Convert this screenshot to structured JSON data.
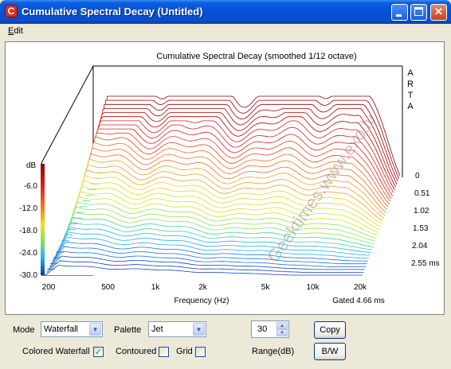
{
  "window": {
    "title": "Cumulative Spectral Decay  (Untitled)",
    "icon": "arta-app-icon",
    "icon_glyph": "C",
    "controls": {
      "minimize": "minimize-icon",
      "maximize": "maximize-icon",
      "close": "close-icon",
      "close_glyph": "✕"
    }
  },
  "menu": {
    "items": [
      {
        "label": "Edit",
        "accel": "E",
        "rest": "dit"
      }
    ]
  },
  "chart": {
    "title": "Cumulative Spectral Decay (smoothed 1/12 octave)",
    "brand": [
      "A",
      "R",
      "T",
      "A"
    ],
    "db_label": "dB",
    "db_ticks": [
      "-6.0",
      "-12.0",
      "-18.0",
      "-24.0",
      "-30.0"
    ],
    "freq_ticks": [
      "200",
      "500",
      "1k",
      "2k",
      "5k",
      "10k",
      "20k"
    ],
    "xlabel": "Frequency (Hz)",
    "time_ticks": [
      "0",
      "0.51",
      "1.02",
      "1.53",
      "2.04",
      "2.55 ms"
    ],
    "gated": "Gated 4.66 ms",
    "palette_colors": [
      "#8b0000",
      "#d42020",
      "#f07020",
      "#f0d020",
      "#b0e040",
      "#40d0c0",
      "#20a0f0",
      "#1040c0"
    ]
  },
  "chart_data": {
    "type": "waterfall",
    "title": "Cumulative Spectral Decay (smoothed 1/12 octave)",
    "xlabel": "Frequency (Hz)",
    "x_scale": "log",
    "xlim": [
      200,
      20000
    ],
    "x_ticks": [
      200,
      500,
      1000,
      2000,
      5000,
      10000,
      20000
    ],
    "z_label": "dB",
    "z_range": [
      -30,
      0
    ],
    "z_ticks": [
      -6,
      -12,
      -18,
      -24,
      -30
    ],
    "time_ticks_ms": [
      0,
      0.51,
      1.02,
      1.53,
      2.04,
      2.55
    ],
    "gate_ms": 4.66,
    "slices": 36
  },
  "controls": {
    "mode_label": "Mode",
    "mode_value": "Waterfall",
    "palette_label": "Palette",
    "palette_value": "Jet",
    "range_value": "30",
    "range_label": "Range(dB)",
    "copy_label": "Copy",
    "bw_label": "B/W",
    "colored_label": "Colored Waterfall",
    "colored_checked": true,
    "contoured_label": "Contoured",
    "contoured_checked": false,
    "grid_label": "Grid",
    "grid_checked": false,
    "check_glyph": "✓",
    "dropdown_glyph": "▼",
    "spin_up_glyph": "▲",
    "spin_down_glyph": "▼"
  },
  "watermark": "Geektimes.www.exo.lv"
}
